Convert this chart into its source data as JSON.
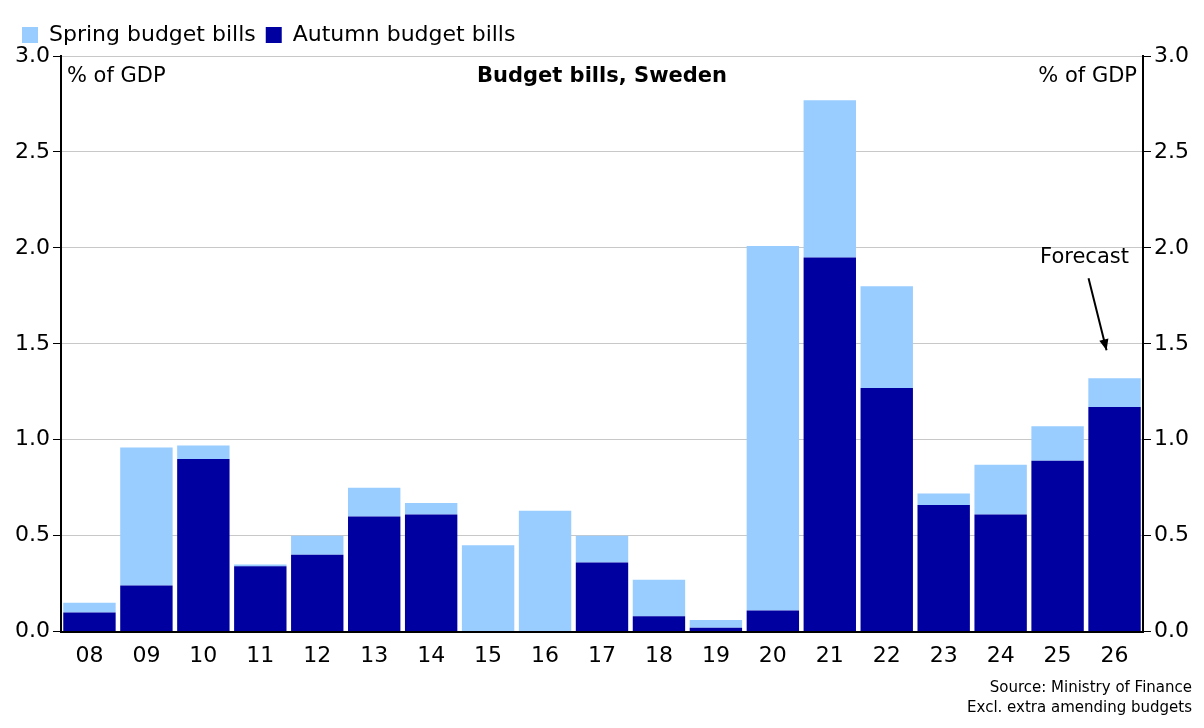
{
  "chart_data": {
    "type": "bar",
    "title": "Budget bills, Sweden",
    "ylabel": "% of GDP",
    "y2label": "% of GDP",
    "categories": [
      "08",
      "09",
      "10",
      "11",
      "12",
      "13",
      "14",
      "15",
      "16",
      "17",
      "18",
      "19",
      "20",
      "21",
      "22",
      "23",
      "24",
      "25",
      "26"
    ],
    "series": [
      {
        "name": "Autumn budget bills",
        "color": "#0000a0",
        "values": [
          0.1,
          0.24,
          0.9,
          0.34,
          0.4,
          0.6,
          0.61,
          0.0,
          0.0,
          0.36,
          0.08,
          0.02,
          0.11,
          1.95,
          1.27,
          0.66,
          0.61,
          0.89,
          1.17
        ]
      },
      {
        "name": "Spring budget bills",
        "color": "#99ccff",
        "values": [
          0.05,
          0.72,
          0.07,
          0.01,
          0.1,
          0.15,
          0.06,
          0.45,
          0.63,
          0.14,
          0.19,
          0.04,
          1.9,
          0.82,
          0.53,
          0.06,
          0.26,
          0.18,
          0.15
        ]
      }
    ],
    "stacked": true,
    "ylim": [
      0,
      3
    ],
    "yticks": [
      {
        "value": 0,
        "label": "0.0"
      },
      {
        "value": 0.5,
        "label": "0.5"
      },
      {
        "value": 1,
        "label": "1.0"
      },
      {
        "value": 1.5,
        "label": "1.5"
      },
      {
        "value": 2,
        "label": "2.0"
      },
      {
        "value": 2.5,
        "label": "2.5"
      },
      {
        "value": 3,
        "label": "3.0"
      }
    ],
    "y2lim": [
      0,
      3
    ],
    "y2ticks": [
      {
        "value": 0,
        "label": "0.0"
      },
      {
        "value": 0.5,
        "label": "0.5"
      },
      {
        "value": 1,
        "label": "1.0"
      },
      {
        "value": 1.5,
        "label": "1.5"
      },
      {
        "value": 2,
        "label": "2.0"
      },
      {
        "value": 2.5,
        "label": "2.5"
      },
      {
        "value": 3,
        "label": "3.0"
      }
    ],
    "grid": "y",
    "legend": "top left",
    "annotations": [
      "Forecast",
      "Source: Ministry of Finance",
      "Excl. extra amending budgets"
    ]
  }
}
